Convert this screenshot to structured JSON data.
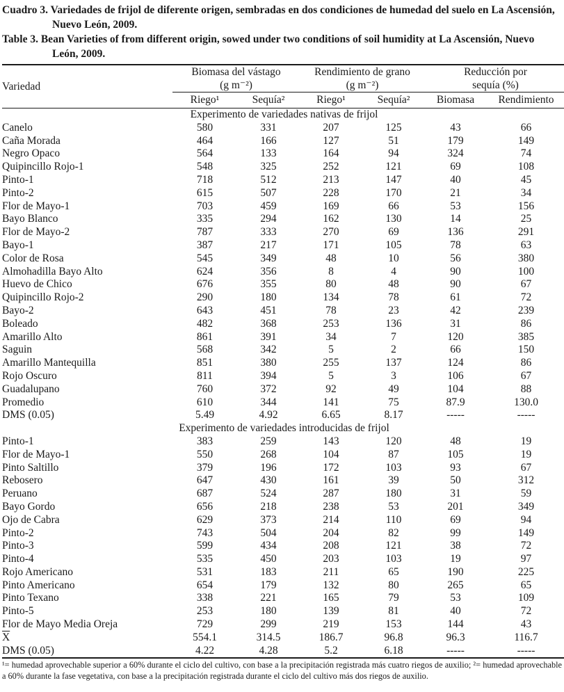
{
  "captions": {
    "es": "Cuadro 3. Variedades de frijol de diferente origen, sembradas en dos condiciones de humedad del suelo en La Ascensión, Nuevo León, 2009.",
    "en": "Table 3. Bean Varieties of from different origin, sowed under two conditions of soil humidity at La Ascensión, Nuevo León, 2009."
  },
  "table": {
    "col_variety": "Variedad",
    "groups": [
      {
        "line1": "Biomasa del vástago",
        "line2": "(g m⁻²)"
      },
      {
        "line1": "Rendimiento de grano",
        "line2": "(g m⁻²)"
      },
      {
        "line1": "Reducción por",
        "line2": "sequía (%)"
      }
    ],
    "subheaders": [
      "Riego¹",
      "Sequía²",
      "Riego¹",
      "Sequía²",
      "Biomasa",
      "Rendimiento"
    ],
    "sections": [
      {
        "header": "Experimento de variedades nativas de frijol",
        "rows": [
          {
            "name": "Canelo",
            "values": [
              "580",
              "331",
              "207",
              "125",
              "43",
              "66"
            ]
          },
          {
            "name": "Caña Morada",
            "values": [
              "464",
              "166",
              "127",
              "51",
              "179",
              "149"
            ]
          },
          {
            "name": "Negro Opaco",
            "values": [
              "564",
              "133",
              "164",
              "94",
              "324",
              "74"
            ]
          },
          {
            "name": "Quipincillo Rojo-1",
            "values": [
              "548",
              "325",
              "252",
              "121",
              "69",
              "108"
            ]
          },
          {
            "name": "Pinto-1",
            "values": [
              "718",
              "512",
              "213",
              "147",
              "40",
              "45"
            ]
          },
          {
            "name": "Pinto-2",
            "values": [
              "615",
              "507",
              "228",
              "170",
              "21",
              "34"
            ]
          },
          {
            "name": "Flor de Mayo-1",
            "values": [
              "703",
              "459",
              "169",
              "66",
              "53",
              "156"
            ]
          },
          {
            "name": "Bayo Blanco",
            "values": [
              "335",
              "294",
              "162",
              "130",
              "14",
              "25"
            ]
          },
          {
            "name": "Flor de Mayo-2",
            "values": [
              "787",
              "333",
              "270",
              "69",
              "136",
              "291"
            ]
          },
          {
            "name": "Bayo-1",
            "values": [
              "387",
              "217",
              "171",
              "105",
              "78",
              "63"
            ]
          },
          {
            "name": "Color de Rosa",
            "values": [
              "545",
              "349",
              "48",
              "10",
              "56",
              "380"
            ]
          },
          {
            "name": "Almohadilla Bayo Alto",
            "values": [
              "624",
              "356",
              "8",
              "4",
              "90",
              "100"
            ]
          },
          {
            "name": "Huevo de Chico",
            "values": [
              "676",
              "355",
              "80",
              "48",
              "90",
              "67"
            ]
          },
          {
            "name": "Quipincillo Rojo-2",
            "values": [
              "290",
              "180",
              "134",
              "78",
              "61",
              "72"
            ]
          },
          {
            "name": "Bayo-2",
            "values": [
              "643",
              "451",
              "78",
              "23",
              "42",
              "239"
            ]
          },
          {
            "name": "Boleado",
            "values": [
              "482",
              "368",
              "253",
              "136",
              "31",
              "86"
            ]
          },
          {
            "name": "Amarillo Alto",
            "values": [
              "861",
              "391",
              "34",
              "7",
              "120",
              "385"
            ]
          },
          {
            "name": "Saguin",
            "values": [
              "568",
              "342",
              "5",
              "2",
              "66",
              "150"
            ]
          },
          {
            "name": "Amarillo Mantequilla",
            "values": [
              "851",
              "380",
              "255",
              "137",
              "124",
              "86"
            ]
          },
          {
            "name": "Rojo Oscuro",
            "values": [
              "811",
              "394",
              "5",
              "3",
              "106",
              "67"
            ]
          },
          {
            "name": "Guadalupano",
            "values": [
              "760",
              "372",
              "92",
              "49",
              "104",
              "88"
            ]
          },
          {
            "name": "Promedio",
            "values": [
              "610",
              "344",
              "141",
              "75",
              "87.9",
              "130.0"
            ]
          },
          {
            "name": "DMS (0.05)",
            "values": [
              "5.49",
              "4.92",
              "6.65",
              "8.17",
              "-----",
              "-----"
            ]
          }
        ]
      },
      {
        "header": "Experimento de variedades introducidas de frijol",
        "rows": [
          {
            "name": "Pinto-1",
            "values": [
              "383",
              "259",
              "143",
              "120",
              "48",
              "19"
            ]
          },
          {
            "name": "Flor de Mayo-1",
            "values": [
              "550",
              "268",
              "104",
              "87",
              "105",
              "19"
            ]
          },
          {
            "name": "Pinto Saltillo",
            "values": [
              "379",
              "196",
              "172",
              "103",
              "93",
              "67"
            ]
          },
          {
            "name": "Rebosero",
            "values": [
              "647",
              "430",
              "161",
              "39",
              "50",
              "312"
            ]
          },
          {
            "name": "Peruano",
            "values": [
              "687",
              "524",
              "287",
              "180",
              "31",
              "59"
            ]
          },
          {
            "name": "Bayo Gordo",
            "values": [
              "656",
              "218",
              "238",
              "53",
              "201",
              "349"
            ]
          },
          {
            "name": "Ojo de Cabra",
            "values": [
              "629",
              "373",
              "214",
              "110",
              "69",
              "94"
            ]
          },
          {
            "name": "Pinto-2",
            "values": [
              "743",
              "504",
              "204",
              "82",
              "99",
              "149"
            ]
          },
          {
            "name": "Pinto-3",
            "values": [
              "599",
              "434",
              "208",
              "121",
              "38",
              "72"
            ]
          },
          {
            "name": "Pinto-4",
            "values": [
              "535",
              "450",
              "203",
              "103",
              "19",
              "97"
            ]
          },
          {
            "name": "Rojo Americano",
            "values": [
              "531",
              "183",
              "211",
              "65",
              "190",
              "225"
            ]
          },
          {
            "name": "Pinto Americano",
            "values": [
              "654",
              "179",
              "132",
              "80",
              "265",
              "65"
            ]
          },
          {
            "name": "Pinto Texano",
            "values": [
              "338",
              "221",
              "165",
              "79",
              "53",
              "109"
            ]
          },
          {
            "name": "Pinto-5",
            "values": [
              "253",
              "180",
              "139",
              "81",
              "40",
              "72"
            ]
          },
          {
            "name": "Flor de Mayo Media Oreja",
            "values": [
              "729",
              "299",
              "219",
              "153",
              "144",
              "43"
            ]
          },
          {
            "name": "X",
            "overline": true,
            "values": [
              "554.1",
              "314.5",
              "186.7",
              "96.8",
              "96.3",
              "116.7"
            ]
          },
          {
            "name": "DMS (0.05)",
            "values": [
              "4.22",
              "4.28",
              "5.2",
              "6.18",
              "-----",
              "-----"
            ]
          }
        ]
      }
    ],
    "footnote": "¹= humedad aprovechable superior a 60% durante el ciclo del cultivo, con base a la precipitación registrada más cuatro riegos de auxilio; ²= humedad aprovechable a 60% durante la fase vegetativa, con base a la precipitación registrada durante el ciclo del cultivo más dos riegos de auxilio."
  }
}
